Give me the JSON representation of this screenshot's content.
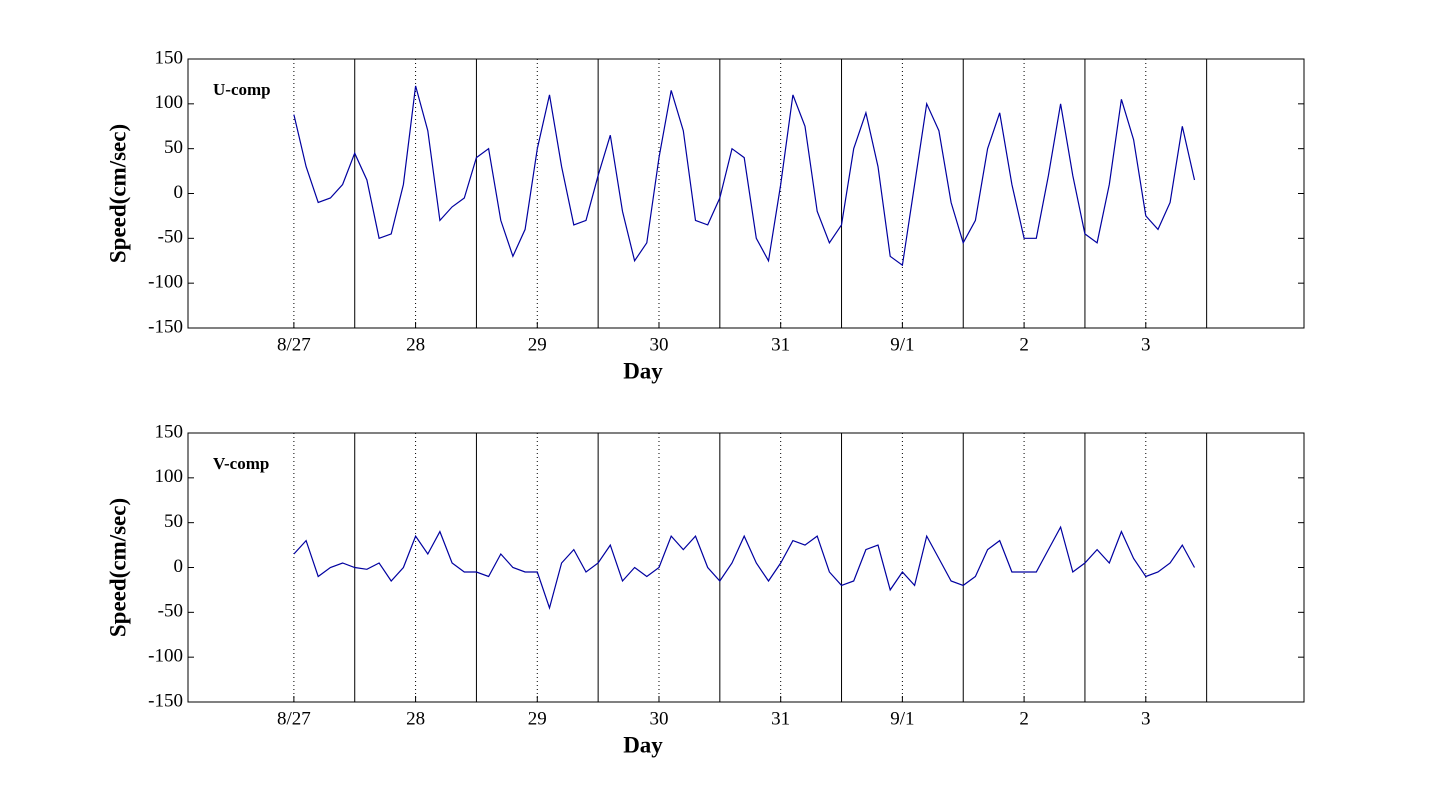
{
  "chart_data": [
    {
      "type": "line",
      "annotation": "U-comp",
      "xlabel": "Day",
      "ylabel": "Speed(cm/sec)",
      "color": "#0000a0",
      "x": [
        0,
        0.1,
        0.2,
        0.3,
        0.4,
        0.5,
        0.6,
        0.7,
        0.8,
        0.9,
        1,
        1.1,
        1.2,
        1.3,
        1.4,
        1.5,
        1.6,
        1.7,
        1.8,
        1.9,
        2,
        2.1,
        2.2,
        2.3,
        2.4,
        2.5,
        2.6,
        2.7,
        2.8,
        2.9,
        3,
        3.1,
        3.2,
        3.3,
        3.4,
        3.5,
        3.6,
        3.7,
        3.8,
        3.9,
        4,
        4.1,
        4.2,
        4.3,
        4.4,
        4.5,
        4.6,
        4.7,
        4.8,
        4.9,
        5,
        5.1,
        5.2,
        5.3,
        5.4,
        5.5,
        5.6,
        5.7,
        5.8,
        5.9,
        6,
        6.1,
        6.2,
        6.3,
        6.4,
        6.5,
        6.6,
        6.7,
        6.8,
        6.9,
        7,
        7.1,
        7.2,
        7.3,
        7.4
      ],
      "values": [
        88,
        30,
        -10,
        -5,
        10,
        45,
        15,
        -50,
        -45,
        10,
        120,
        70,
        -30,
        -15,
        -5,
        40,
        50,
        -30,
        -70,
        -40,
        50,
        110,
        30,
        -35,
        -30,
        20,
        65,
        -20,
        -75,
        -55,
        40,
        115,
        70,
        -30,
        -35,
        -5,
        50,
        40,
        -50,
        -75,
        10,
        110,
        75,
        -20,
        -55,
        -35,
        50,
        90,
        30,
        -70,
        -80,
        10,
        100,
        70,
        -10,
        -55,
        -30,
        50,
        90,
        10,
        -50,
        -50,
        20,
        100,
        20,
        -45,
        -55,
        10,
        105,
        60,
        -25,
        -40,
        -10,
        75,
        15
      ],
      "xlim": [
        -0.87,
        8.3
      ],
      "xticks": [
        {
          "value": 0,
          "label": "8/27"
        },
        {
          "value": 1,
          "label": "28"
        },
        {
          "value": 2,
          "label": "29"
        },
        {
          "value": 3,
          "label": "30"
        },
        {
          "value": 4,
          "label": "31"
        },
        {
          "value": 5,
          "label": "9/1"
        },
        {
          "value": 6,
          "label": "2"
        },
        {
          "value": 7,
          "label": "3"
        }
      ],
      "ylim": [
        -150,
        150
      ],
      "yticks": [
        -150,
        -100,
        -50,
        0,
        50,
        100,
        150
      ],
      "vlines": [
        0.5,
        1.5,
        2.5,
        3.5,
        4.5,
        5.5,
        6.5,
        7.5
      ],
      "grid": "x"
    },
    {
      "type": "line",
      "annotation": "V-comp",
      "xlabel": "Day",
      "ylabel": "Speed(cm/sec)",
      "color": "#0000a0",
      "x": [
        0,
        0.1,
        0.2,
        0.3,
        0.4,
        0.5,
        0.6,
        0.7,
        0.8,
        0.9,
        1,
        1.1,
        1.2,
        1.3,
        1.4,
        1.5,
        1.6,
        1.7,
        1.8,
        1.9,
        2,
        2.1,
        2.2,
        2.3,
        2.4,
        2.5,
        2.6,
        2.7,
        2.8,
        2.9,
        3,
        3.1,
        3.2,
        3.3,
        3.4,
        3.5,
        3.6,
        3.7,
        3.8,
        3.9,
        4,
        4.1,
        4.2,
        4.3,
        4.4,
        4.5,
        4.6,
        4.7,
        4.8,
        4.9,
        5,
        5.1,
        5.2,
        5.3,
        5.4,
        5.5,
        5.6,
        5.7,
        5.8,
        5.9,
        6,
        6.1,
        6.2,
        6.3,
        6.4,
        6.5,
        6.6,
        6.7,
        6.8,
        6.9,
        7,
        7.1,
        7.2,
        7.3,
        7.4
      ],
      "values": [
        15,
        30,
        -10,
        0,
        5,
        0,
        -2,
        5,
        -15,
        0,
        35,
        15,
        40,
        5,
        -5,
        -5,
        -10,
        15,
        0,
        -5,
        -5,
        -45,
        5,
        20,
        -5,
        5,
        25,
        -15,
        0,
        -10,
        0,
        35,
        20,
        35,
        0,
        -15,
        5,
        35,
        5,
        -15,
        5,
        30,
        25,
        35,
        -5,
        -20,
        -15,
        20,
        25,
        -25,
        -5,
        -20,
        35,
        10,
        -15,
        -20,
        -10,
        20,
        30,
        -5,
        -5,
        -5,
        20,
        45,
        -5,
        5,
        20,
        5,
        40,
        10,
        -10,
        -5,
        5,
        25,
        0
      ],
      "xlim": [
        -0.87,
        8.3
      ],
      "xticks": [
        {
          "value": 0,
          "label": "8/27"
        },
        {
          "value": 1,
          "label": "28"
        },
        {
          "value": 2,
          "label": "29"
        },
        {
          "value": 3,
          "label": "30"
        },
        {
          "value": 4,
          "label": "31"
        },
        {
          "value": 5,
          "label": "9/1"
        },
        {
          "value": 6,
          "label": "2"
        },
        {
          "value": 7,
          "label": "3"
        }
      ],
      "ylim": [
        -150,
        150
      ],
      "yticks": [
        -150,
        -100,
        -50,
        0,
        50,
        100,
        150
      ],
      "vlines": [
        0.5,
        1.5,
        2.5,
        3.5,
        4.5,
        5.5,
        6.5,
        7.5
      ],
      "grid": "x"
    }
  ]
}
